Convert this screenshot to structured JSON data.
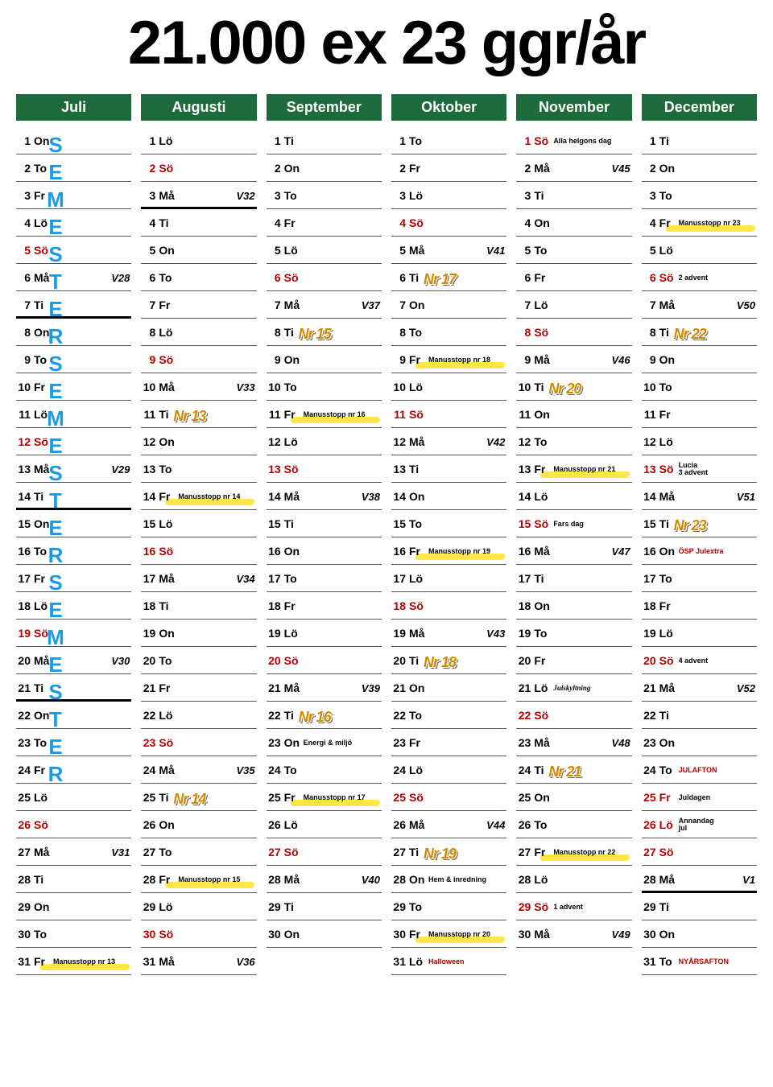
{
  "title": "21.000 ex 23 ggr/år",
  "semester_letters": [
    "S",
    "E",
    "M",
    "E",
    "S",
    "T",
    "E",
    "R",
    "S",
    "E",
    "M",
    "E",
    "S",
    "T",
    "E",
    "R",
    "S",
    "E",
    "M",
    "E",
    "S",
    "T",
    "E",
    "R"
  ],
  "colors": {
    "header_bg": "#1d6b3a",
    "header_fg": "#ffffff",
    "red": "#b30000",
    "highlight": "#ffe74a",
    "semester": "#1a9be8",
    "nr_badge": "#d08a00"
  },
  "months": [
    {
      "name": "Juli",
      "days": [
        {
          "n": 1,
          "d": "On"
        },
        {
          "n": 2,
          "d": "To"
        },
        {
          "n": 3,
          "d": "Fr"
        },
        {
          "n": 4,
          "d": "Lö"
        },
        {
          "n": 5,
          "d": "Sö",
          "red": true
        },
        {
          "n": 6,
          "d": "Må",
          "week": "V28"
        },
        {
          "n": 7,
          "d": "Ti",
          "thick": true
        },
        {
          "n": 8,
          "d": "On"
        },
        {
          "n": 9,
          "d": "To"
        },
        {
          "n": 10,
          "d": "Fr"
        },
        {
          "n": 11,
          "d": "Lö"
        },
        {
          "n": 12,
          "d": "Sö",
          "red": true
        },
        {
          "n": 13,
          "d": "Må",
          "week": "V29"
        },
        {
          "n": 14,
          "d": "Ti",
          "thick": true
        },
        {
          "n": 15,
          "d": "On"
        },
        {
          "n": 16,
          "d": "To"
        },
        {
          "n": 17,
          "d": "Fr"
        },
        {
          "n": 18,
          "d": "Lö"
        },
        {
          "n": 19,
          "d": "Sö",
          "red": true
        },
        {
          "n": 20,
          "d": "Må",
          "week": "V30"
        },
        {
          "n": 21,
          "d": "Ti",
          "thick": true
        },
        {
          "n": 22,
          "d": "On"
        },
        {
          "n": 23,
          "d": "To"
        },
        {
          "n": 24,
          "d": "Fr"
        },
        {
          "n": 25,
          "d": "Lö"
        },
        {
          "n": 26,
          "d": "Sö",
          "red": true
        },
        {
          "n": 27,
          "d": "Må",
          "week": "V31"
        },
        {
          "n": 28,
          "d": "Ti"
        },
        {
          "n": 29,
          "d": "On"
        },
        {
          "n": 30,
          "d": "To"
        },
        {
          "n": 31,
          "d": "Fr",
          "note": "Manusstopp nr 13",
          "hl": true
        }
      ]
    },
    {
      "name": "Augusti",
      "days": [
        {
          "n": 1,
          "d": "Lö"
        },
        {
          "n": 2,
          "d": "Sö",
          "red": true
        },
        {
          "n": 3,
          "d": "Må",
          "week": "V32",
          "thick": true
        },
        {
          "n": 4,
          "d": "Ti"
        },
        {
          "n": 5,
          "d": "On"
        },
        {
          "n": 6,
          "d": "To"
        },
        {
          "n": 7,
          "d": "Fr"
        },
        {
          "n": 8,
          "d": "Lö"
        },
        {
          "n": 9,
          "d": "Sö",
          "red": true
        },
        {
          "n": 10,
          "d": "Må",
          "week": "V33"
        },
        {
          "n": 11,
          "d": "Ti",
          "nr": "Nr 13"
        },
        {
          "n": 12,
          "d": "On"
        },
        {
          "n": 13,
          "d": "To"
        },
        {
          "n": 14,
          "d": "Fr",
          "note": "Manusstopp nr 14",
          "hl": true
        },
        {
          "n": 15,
          "d": "Lö"
        },
        {
          "n": 16,
          "d": "Sö",
          "red": true
        },
        {
          "n": 17,
          "d": "Må",
          "week": "V34"
        },
        {
          "n": 18,
          "d": "Ti"
        },
        {
          "n": 19,
          "d": "On"
        },
        {
          "n": 20,
          "d": "To"
        },
        {
          "n": 21,
          "d": "Fr"
        },
        {
          "n": 22,
          "d": "Lö"
        },
        {
          "n": 23,
          "d": "Sö",
          "red": true
        },
        {
          "n": 24,
          "d": "Må",
          "week": "V35"
        },
        {
          "n": 25,
          "d": "Ti",
          "nr": "Nr 14"
        },
        {
          "n": 26,
          "d": "On"
        },
        {
          "n": 27,
          "d": "To"
        },
        {
          "n": 28,
          "d": "Fr",
          "note": "Manusstopp nr 15",
          "hl": true
        },
        {
          "n": 29,
          "d": "Lö"
        },
        {
          "n": 30,
          "d": "Sö",
          "red": true
        },
        {
          "n": 31,
          "d": "Må",
          "week": "V36"
        }
      ]
    },
    {
      "name": "September",
      "days": [
        {
          "n": 1,
          "d": "Ti"
        },
        {
          "n": 2,
          "d": "On"
        },
        {
          "n": 3,
          "d": "To"
        },
        {
          "n": 4,
          "d": "Fr"
        },
        {
          "n": 5,
          "d": "Lö"
        },
        {
          "n": 6,
          "d": "Sö",
          "red": true
        },
        {
          "n": 7,
          "d": "Må",
          "week": "V37"
        },
        {
          "n": 8,
          "d": "Ti",
          "nr": "Nr 15"
        },
        {
          "n": 9,
          "d": "On"
        },
        {
          "n": 10,
          "d": "To"
        },
        {
          "n": 11,
          "d": "Fr",
          "note": "Manusstopp nr 16",
          "hl": true
        },
        {
          "n": 12,
          "d": "Lö"
        },
        {
          "n": 13,
          "d": "Sö",
          "red": true
        },
        {
          "n": 14,
          "d": "Må",
          "week": "V38"
        },
        {
          "n": 15,
          "d": "Ti"
        },
        {
          "n": 16,
          "d": "On"
        },
        {
          "n": 17,
          "d": "To"
        },
        {
          "n": 18,
          "d": "Fr"
        },
        {
          "n": 19,
          "d": "Lö"
        },
        {
          "n": 20,
          "d": "Sö",
          "red": true
        },
        {
          "n": 21,
          "d": "Må",
          "week": "V39"
        },
        {
          "n": 22,
          "d": "Ti",
          "nr": "Nr 16"
        },
        {
          "n": 23,
          "d": "On",
          "note": "Energi & miljö"
        },
        {
          "n": 24,
          "d": "To"
        },
        {
          "n": 25,
          "d": "Fr",
          "note": "Manusstopp nr 17",
          "hl": true
        },
        {
          "n": 26,
          "d": "Lö"
        },
        {
          "n": 27,
          "d": "Sö",
          "red": true
        },
        {
          "n": 28,
          "d": "Må",
          "week": "V40"
        },
        {
          "n": 29,
          "d": "Ti"
        },
        {
          "n": 30,
          "d": "On"
        }
      ]
    },
    {
      "name": "Oktober",
      "days": [
        {
          "n": 1,
          "d": "To"
        },
        {
          "n": 2,
          "d": "Fr"
        },
        {
          "n": 3,
          "d": "Lö"
        },
        {
          "n": 4,
          "d": "Sö",
          "red": true
        },
        {
          "n": 5,
          "d": "Må",
          "week": "V41"
        },
        {
          "n": 6,
          "d": "Ti",
          "nr": "Nr 17"
        },
        {
          "n": 7,
          "d": "On"
        },
        {
          "n": 8,
          "d": "To"
        },
        {
          "n": 9,
          "d": "Fr",
          "note": "Manusstopp nr 18",
          "hl": true
        },
        {
          "n": 10,
          "d": "Lö"
        },
        {
          "n": 11,
          "d": "Sö",
          "red": true
        },
        {
          "n": 12,
          "d": "Må",
          "week": "V42"
        },
        {
          "n": 13,
          "d": "Ti"
        },
        {
          "n": 14,
          "d": "On"
        },
        {
          "n": 15,
          "d": "To"
        },
        {
          "n": 16,
          "d": "Fr",
          "note": "Manusstopp nr 19",
          "hl": true
        },
        {
          "n": 17,
          "d": "Lö"
        },
        {
          "n": 18,
          "d": "Sö",
          "red": true
        },
        {
          "n": 19,
          "d": "Må",
          "week": "V43"
        },
        {
          "n": 20,
          "d": "Ti",
          "nr": "Nr 18"
        },
        {
          "n": 21,
          "d": "On"
        },
        {
          "n": 22,
          "d": "To"
        },
        {
          "n": 23,
          "d": "Fr"
        },
        {
          "n": 24,
          "d": "Lö"
        },
        {
          "n": 25,
          "d": "Sö",
          "red": true
        },
        {
          "n": 26,
          "d": "Må",
          "week": "V44"
        },
        {
          "n": 27,
          "d": "Ti",
          "nr": "Nr 19"
        },
        {
          "n": 28,
          "d": "On",
          "note": "Hem & inredning"
        },
        {
          "n": 29,
          "d": "To"
        },
        {
          "n": 30,
          "d": "Fr",
          "note": "Manusstopp nr 20",
          "hl": true
        },
        {
          "n": 31,
          "d": "Lö",
          "note": "Halloween",
          "note_red": true
        }
      ]
    },
    {
      "name": "November",
      "days": [
        {
          "n": 1,
          "d": "Sö",
          "red": true,
          "note": "Alla helgons dag"
        },
        {
          "n": 2,
          "d": "Må",
          "week": "V45"
        },
        {
          "n": 3,
          "d": "Ti"
        },
        {
          "n": 4,
          "d": "On"
        },
        {
          "n": 5,
          "d": "To"
        },
        {
          "n": 6,
          "d": "Fr"
        },
        {
          "n": 7,
          "d": "Lö"
        },
        {
          "n": 8,
          "d": "Sö",
          "red": true
        },
        {
          "n": 9,
          "d": "Må",
          "week": "V46"
        },
        {
          "n": 10,
          "d": "Ti",
          "nr": "Nr 20"
        },
        {
          "n": 11,
          "d": "On"
        },
        {
          "n": 12,
          "d": "To"
        },
        {
          "n": 13,
          "d": "Fr",
          "note": "Manusstopp nr 21",
          "hl": true
        },
        {
          "n": 14,
          "d": "Lö"
        },
        {
          "n": 15,
          "d": "Sö",
          "red": true,
          "note": "Fars dag"
        },
        {
          "n": 16,
          "d": "Må",
          "week": "V47"
        },
        {
          "n": 17,
          "d": "Ti"
        },
        {
          "n": 18,
          "d": "On"
        },
        {
          "n": 19,
          "d": "To"
        },
        {
          "n": 20,
          "d": "Fr"
        },
        {
          "n": 21,
          "d": "Lö",
          "note": "Julskyltning",
          "script": true
        },
        {
          "n": 22,
          "d": "Sö",
          "red": true
        },
        {
          "n": 23,
          "d": "Må",
          "week": "V48"
        },
        {
          "n": 24,
          "d": "Ti",
          "nr": "Nr 21"
        },
        {
          "n": 25,
          "d": "On"
        },
        {
          "n": 26,
          "d": "To"
        },
        {
          "n": 27,
          "d": "Fr",
          "note": "Manusstopp nr 22",
          "hl": true
        },
        {
          "n": 28,
          "d": "Lö"
        },
        {
          "n": 29,
          "d": "Sö",
          "red": true,
          "note": "1 advent"
        },
        {
          "n": 30,
          "d": "Må",
          "week": "V49"
        }
      ]
    },
    {
      "name": "December",
      "days": [
        {
          "n": 1,
          "d": "Ti"
        },
        {
          "n": 2,
          "d": "On"
        },
        {
          "n": 3,
          "d": "To"
        },
        {
          "n": 4,
          "d": "Fr",
          "note": "Manusstopp nr 23",
          "hl": true
        },
        {
          "n": 5,
          "d": "Lö"
        },
        {
          "n": 6,
          "d": "Sö",
          "red": true,
          "note": "2 advent"
        },
        {
          "n": 7,
          "d": "Må",
          "week": "V50"
        },
        {
          "n": 8,
          "d": "Ti",
          "nr": "Nr 22"
        },
        {
          "n": 9,
          "d": "On"
        },
        {
          "n": 10,
          "d": "To"
        },
        {
          "n": 11,
          "d": "Fr"
        },
        {
          "n": 12,
          "d": "Lö"
        },
        {
          "n": 13,
          "d": "Sö",
          "red": true,
          "note": "Lucia\n3 advent"
        },
        {
          "n": 14,
          "d": "Må",
          "week": "V51"
        },
        {
          "n": 15,
          "d": "Ti",
          "nr": "Nr 23"
        },
        {
          "n": 16,
          "d": "On",
          "note": "ÖSP Julextra",
          "note_red": true
        },
        {
          "n": 17,
          "d": "To"
        },
        {
          "n": 18,
          "d": "Fr"
        },
        {
          "n": 19,
          "d": "Lö"
        },
        {
          "n": 20,
          "d": "Sö",
          "red": true,
          "note": "4 advent"
        },
        {
          "n": 21,
          "d": "Må",
          "week": "V52"
        },
        {
          "n": 22,
          "d": "Ti"
        },
        {
          "n": 23,
          "d": "On"
        },
        {
          "n": 24,
          "d": "To",
          "note": "JULAFTON",
          "note_red": true
        },
        {
          "n": 25,
          "d": "Fr",
          "red": true,
          "note": "Juldagen"
        },
        {
          "n": 26,
          "d": "Lö",
          "red": true,
          "note": "Annandag\njul"
        },
        {
          "n": 27,
          "d": "Sö",
          "red": true
        },
        {
          "n": 28,
          "d": "Må",
          "week": "V1",
          "thick": true
        },
        {
          "n": 29,
          "d": "Ti"
        },
        {
          "n": 30,
          "d": "On"
        },
        {
          "n": 31,
          "d": "To",
          "note": "NYÅRSAFTON",
          "note_red": true
        }
      ]
    }
  ]
}
